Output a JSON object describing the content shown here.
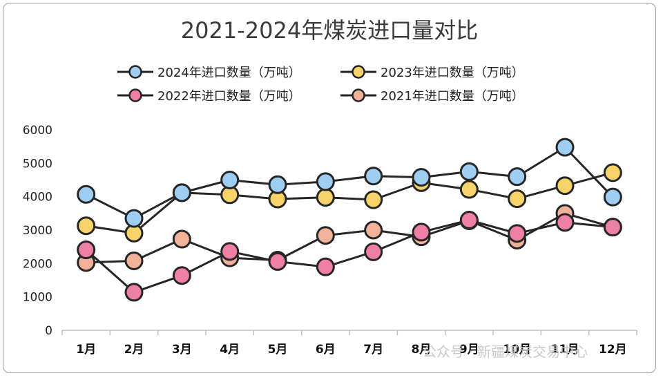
{
  "chart_data": {
    "type": "line",
    "title": "2021-2024年煤炭进口量对比",
    "categories": [
      "1月",
      "2月",
      "3月",
      "4月",
      "5月",
      "6月",
      "7月",
      "8月",
      "9月",
      "10月",
      "11月",
      "12月"
    ],
    "ylim": [
      0,
      6000
    ],
    "yticks": [
      0,
      1000,
      2000,
      3000,
      4000,
      5000,
      6000
    ],
    "legend_position": "top",
    "grid": false,
    "series": [
      {
        "name": "2024年进口数量（万吨）",
        "color": "#9ecff2",
        "values": [
          4070,
          3350,
          4120,
          4500,
          4360,
          4450,
          4620,
          4580,
          4750,
          4600,
          5480,
          3990
        ]
      },
      {
        "name": "2023年进口数量（万吨）",
        "color": "#f8d36a",
        "values": [
          3130,
          2910,
          4120,
          4060,
          3930,
          3980,
          3910,
          4420,
          4220,
          3940,
          4330,
          4720
        ]
      },
      {
        "name": "2022年进口数量（万吨）",
        "color": "#ee7fa5",
        "values": [
          2410,
          1140,
          1640,
          2360,
          2060,
          1900,
          2350,
          2940,
          3300,
          2900,
          3230,
          3090
        ]
      },
      {
        "name": "2021年进口数量（万吨）",
        "color": "#f2b29a",
        "values": [
          2030,
          2080,
          2730,
          2170,
          2100,
          2840,
          3000,
          2800,
          3280,
          2700,
          3500,
          3090
        ]
      }
    ]
  },
  "watermark": "公众号 · 新疆煤炭交易中心"
}
